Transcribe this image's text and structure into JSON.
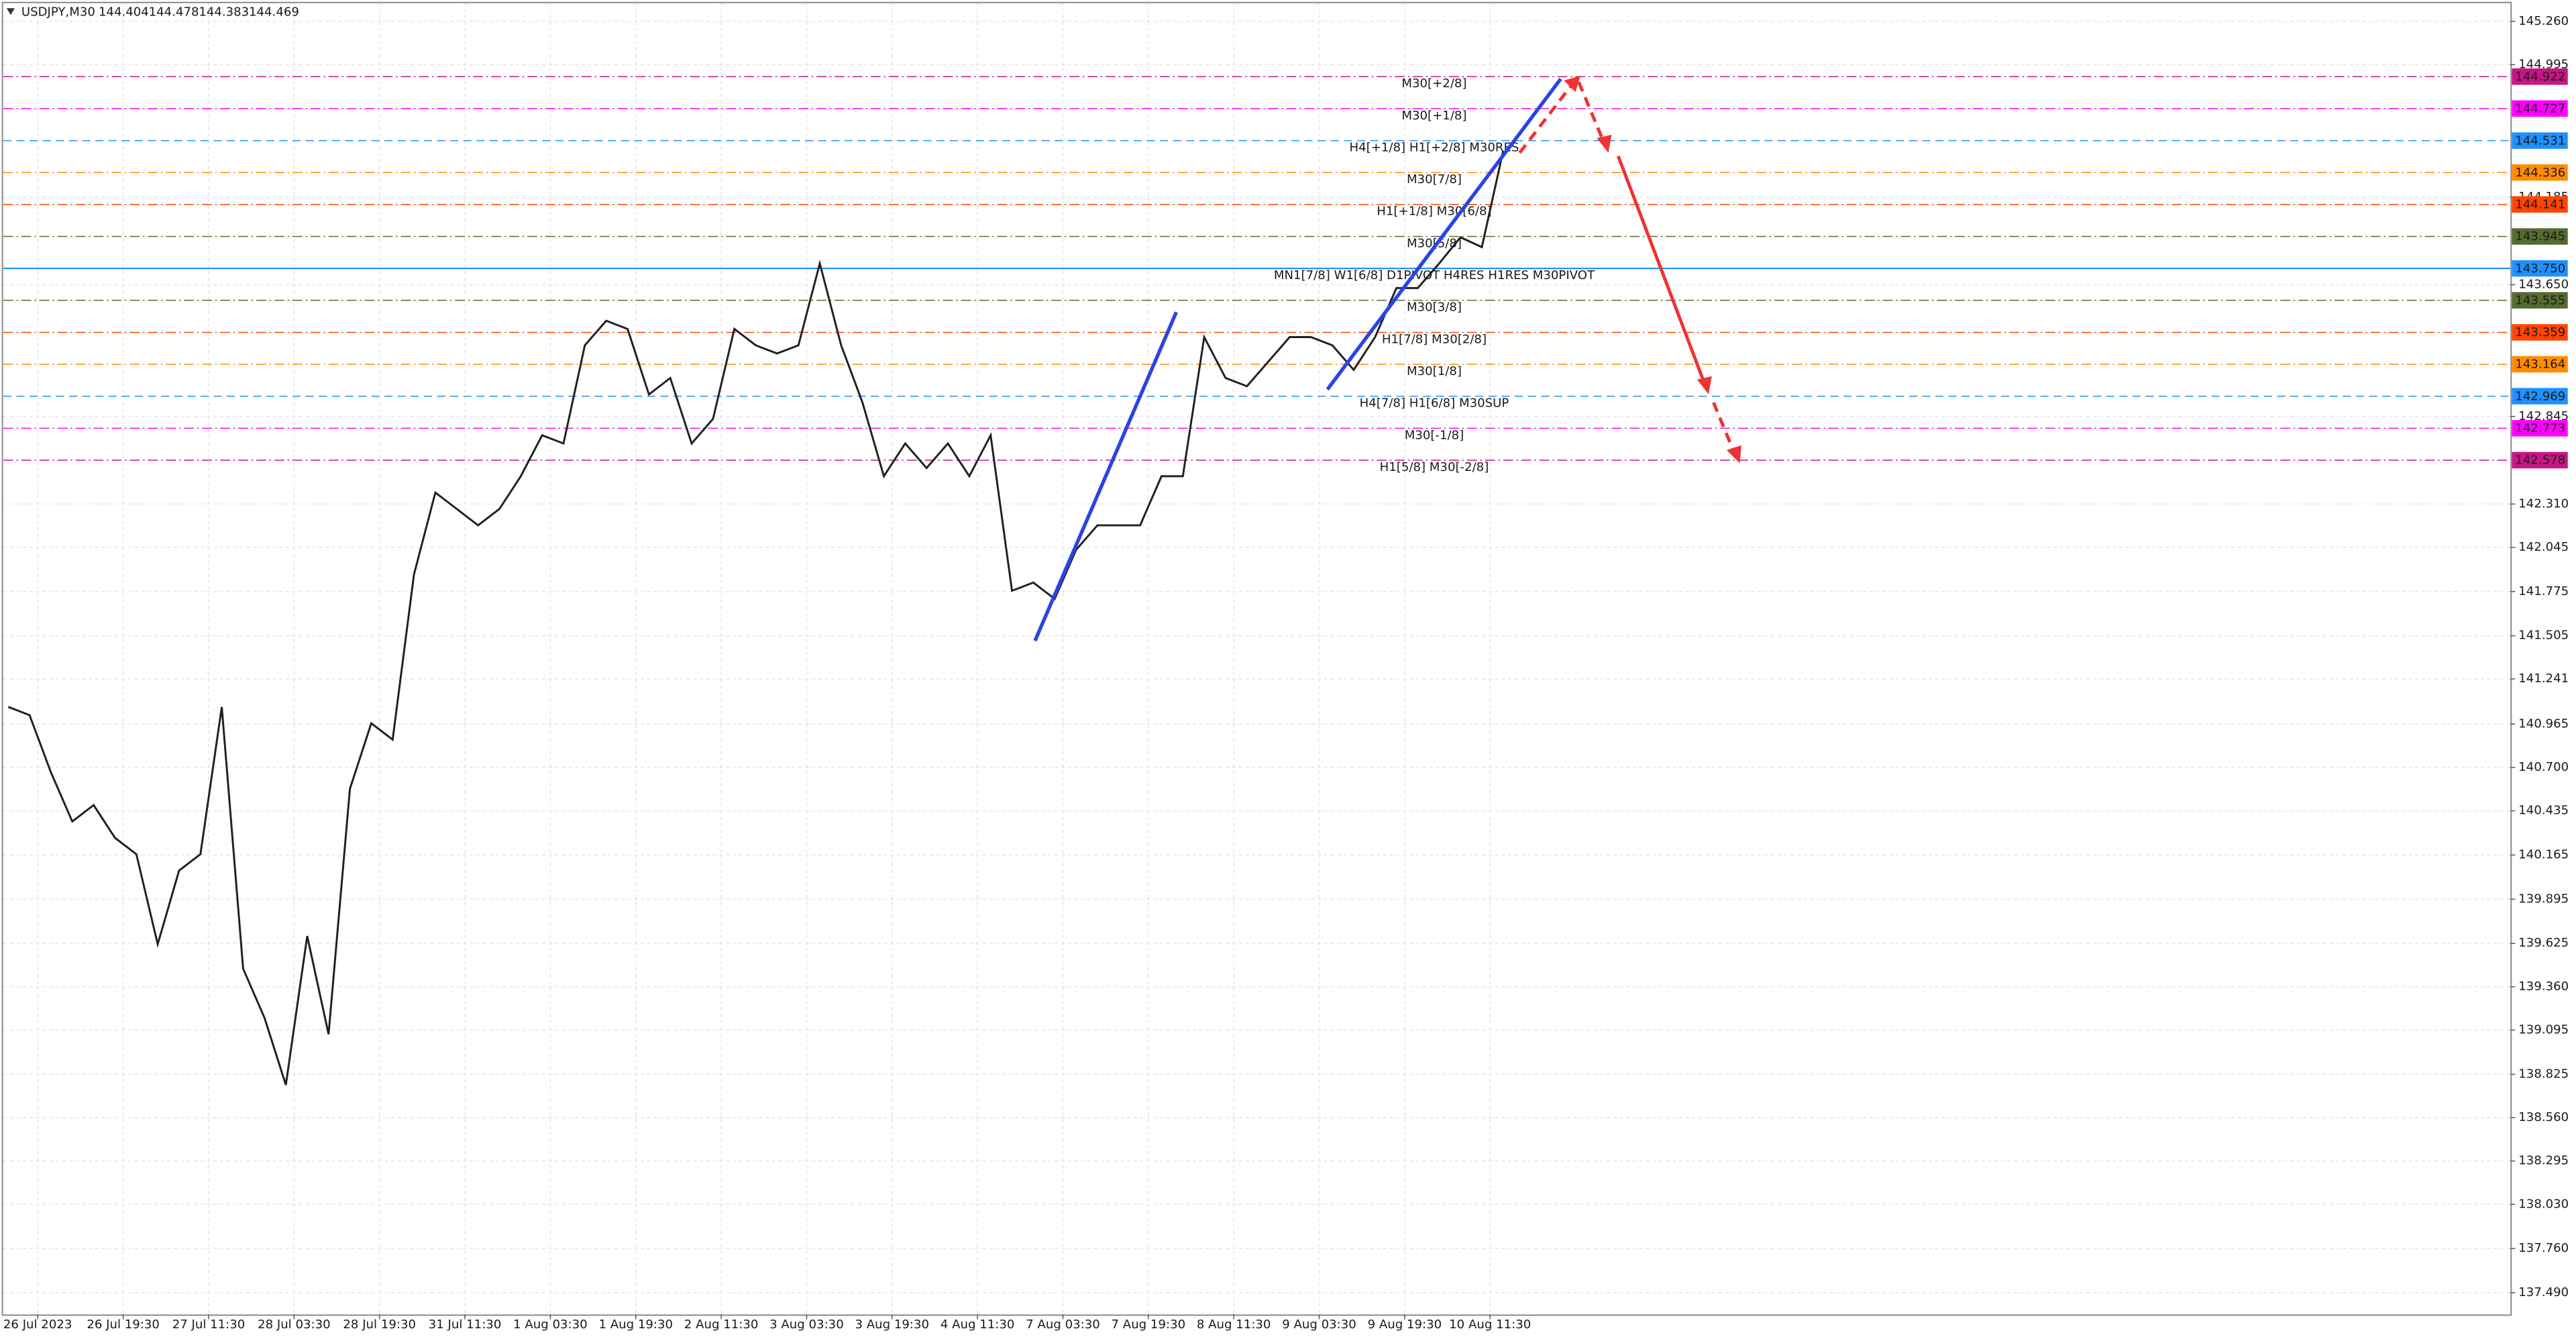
{
  "chart_data": {
    "type": "line",
    "title": "USDJPY,M30",
    "ohlc": [
      144.404,
      144.478,
      144.383,
      144.469
    ],
    "x_labels": [
      "26 Jul 2023",
      "26 Jul 19:30",
      "27 Jul 11:30",
      "28 Jul 03:30",
      "28 Jul 19:30",
      "31 Jul 11:30",
      "1 Aug 03:30",
      "1 Aug 19:30",
      "2 Aug 11:30",
      "3 Aug 03:30",
      "3 Aug 19:30",
      "4 Aug 11:30",
      "7 Aug 03:30",
      "7 Aug 19:30",
      "8 Aug 11:30",
      "9 Aug 03:30",
      "9 Aug 19:30",
      "10 Aug 11:30"
    ],
    "series": [
      {
        "color": "#202020",
        "values": [
          141.07,
          141.02,
          140.67,
          140.37,
          140.47,
          140.27,
          140.17,
          139.62,
          140.07,
          140.17,
          141.07,
          139.47,
          139.17,
          138.76,
          139.67,
          139.07,
          140.57,
          140.97,
          140.87,
          141.88,
          142.38,
          142.28,
          142.18,
          142.28,
          142.48,
          142.73,
          142.68,
          143.28,
          143.43,
          143.38,
          142.98,
          143.08,
          142.68,
          142.83,
          143.38,
          143.28,
          143.23,
          143.28,
          143.78,
          143.28,
          142.93,
          142.48,
          142.68,
          142.53,
          142.68,
          142.48,
          142.73,
          141.78,
          141.83,
          141.73,
          142.03,
          142.18,
          142.18,
          142.18,
          142.48,
          142.48,
          143.33,
          143.08,
          143.03,
          143.18,
          143.33,
          143.33,
          143.28,
          143.13,
          143.33,
          143.63,
          143.63,
          143.78,
          143.94,
          143.88,
          144.469
        ]
      }
    ],
    "ylim": [
      137.358,
      145.38
    ],
    "yticks": [
      {
        "value": 145.26,
        "label": "145.260"
      },
      144.995,
      144.185,
      {
        "value": 143.65,
        "label": "143.650"
      },
      142.845,
      {
        "value": 142.31,
        "label": "142.310"
      },
      142.045,
      141.775,
      141.505,
      141.241,
      140.965,
      {
        "value": 140.7,
        "label": "140.700"
      },
      140.435,
      140.165,
      139.895,
      139.625,
      {
        "value": 139.36,
        "label": "139.360"
      },
      139.095,
      138.825,
      {
        "value": 138.56,
        "label": "138.560"
      },
      138.295,
      {
        "value": 138.03,
        "label": "138.030"
      },
      {
        "value": 137.76,
        "label": "137.760"
      },
      {
        "value": 137.49,
        "label": "137.490"
      }
    ],
    "grid": true,
    "levels": [
      {
        "label": "M30[+2/8]",
        "price": 144.922,
        "color": "#c71585",
        "style": "dashdot"
      },
      {
        "label": "M30[+1/8]",
        "price": 144.727,
        "color": "#ff00ff",
        "style": "dashdot"
      },
      {
        "label": "H4[+1/8] H1[+2/8] M30RES",
        "price": 144.531,
        "color": "#1e90ff",
        "style": "dash"
      },
      {
        "label": "M30[7/8]",
        "price": 144.336,
        "color": "#ff8c00",
        "style": "dashdot"
      },
      {
        "label": "H1[+1/8] M30[6/8]",
        "price": 144.141,
        "color": "#ff4500",
        "style": "dashdot"
      },
      {
        "label": "M30[5/8]",
        "price": 143.945,
        "color": "#556b2f",
        "style": "dashdot"
      },
      {
        "label": "MN1[7/8] W1[6/8] D1PIVOT H4RES H1RES M30PIVOT",
        "price": {
          "value": 143.75,
          "label": "143.750"
        },
        "color": "#1e90ff",
        "style": "solid"
      },
      {
        "label": "M30[3/8]",
        "price": 143.555,
        "color": "#556b2f",
        "style": "dashdot"
      },
      {
        "label": "H1[7/8] M30[2/8]",
        "price": 143.359,
        "color": "#ff4500",
        "style": "dashdot"
      },
      {
        "label": "M30[1/8]",
        "price": 143.164,
        "color": "#ff8c00",
        "style": "dashdot"
      },
      {
        "label": "H4[7/8] H1[6/8] M30SUP",
        "price": 142.969,
        "color": "#1e90ff",
        "style": "dash"
      },
      {
        "label": "M30[-1/8]",
        "price": 142.773,
        "color": "#ff00ff",
        "style": "dashdot"
      },
      {
        "label": "H1[5/8] M30[-2/8]",
        "price": 142.578,
        "color": "#c71585",
        "style": "dashdot"
      }
    ]
  }
}
